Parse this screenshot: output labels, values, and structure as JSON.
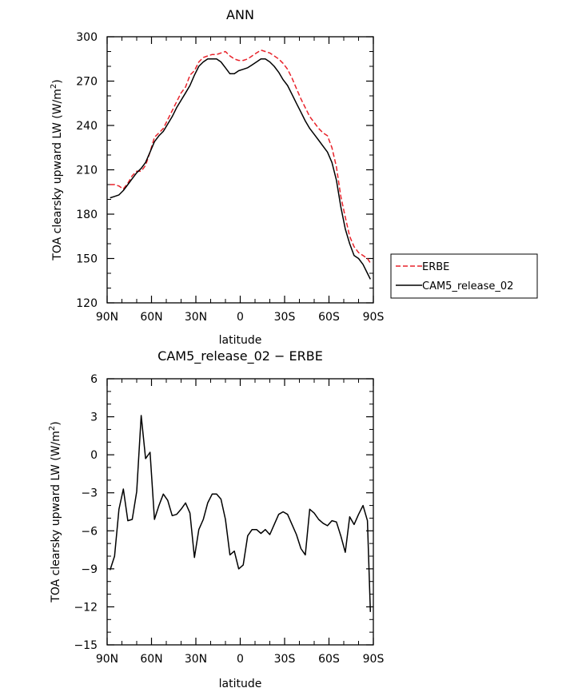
{
  "chart_data": [
    {
      "type": "line",
      "title": "ANN",
      "xlabel": "latitude",
      "ylabel": "TOA clearsky upward LW (W/m",
      "ylabel_sup": "2",
      "ylabel_close": ")",
      "xlim": [
        90,
        -90
      ],
      "ylim": [
        120,
        300
      ],
      "x_ticks": [
        90,
        60,
        30,
        0,
        -30,
        -60,
        -90
      ],
      "x_tick_labels": [
        "90N",
        "60N",
        "30N",
        "0",
        "30S",
        "60S",
        "90S"
      ],
      "y_ticks": [
        120,
        150,
        180,
        210,
        240,
        270,
        300
      ],
      "y_tick_labels": [
        "120",
        "150",
        "180",
        "210",
        "240",
        "270",
        "300"
      ],
      "legend": [
        "ERBE",
        "CAM5_release_02"
      ],
      "series": [
        {
          "name": "ERBE",
          "color": "#e8222a",
          "dash": true,
          "x": [
            88,
            85,
            82,
            79,
            76,
            73,
            70,
            67,
            64,
            61,
            58,
            55,
            52,
            49,
            46,
            43,
            40,
            37,
            34,
            31,
            28,
            25,
            22,
            19,
            16,
            13,
            10,
            7,
            4,
            1,
            -2,
            -5,
            -8,
            -11,
            -14,
            -17,
            -20,
            -23,
            -26,
            -29,
            -32,
            -35,
            -38,
            -41,
            -44,
            -47,
            -50,
            -53,
            -56,
            -59,
            -62,
            -65,
            -68,
            -71,
            -74,
            -77,
            -80,
            -83,
            -86,
            -88
          ],
          "values": [
            200,
            200,
            199,
            197,
            201,
            206,
            209,
            209,
            213,
            222,
            232,
            235,
            238,
            244,
            250,
            256,
            262,
            266,
            274,
            277,
            283,
            286,
            287,
            288,
            288,
            289,
            290,
            287,
            285,
            284,
            284,
            285,
            287,
            289,
            291,
            290,
            289,
            287,
            285,
            282,
            278,
            272,
            265,
            258,
            252,
            246,
            242,
            238,
            235,
            233,
            225,
            212,
            192,
            178,
            165,
            158,
            154,
            152,
            150,
            147
          ]
        },
        {
          "name": "CAM5_release_02",
          "color": "#000000",
          "dash": false,
          "x": [
            88,
            85,
            82,
            79,
            76,
            73,
            70,
            67,
            64,
            61,
            58,
            55,
            52,
            49,
            46,
            43,
            40,
            37,
            34,
            31,
            28,
            25,
            22,
            19,
            16,
            13,
            10,
            7,
            4,
            1,
            -2,
            -5,
            -8,
            -11,
            -14,
            -17,
            -20,
            -23,
            -26,
            -29,
            -32,
            -35,
            -38,
            -41,
            -44,
            -47,
            -50,
            -53,
            -56,
            -59,
            -62,
            -65,
            -68,
            -71,
            -74,
            -77,
            -80,
            -83,
            -86,
            -88
          ],
          "values": [
            191,
            192,
            193,
            196,
            200,
            204,
            208,
            211,
            215,
            222,
            229,
            233,
            236,
            241,
            246,
            252,
            257,
            262,
            267,
            274,
            280,
            283,
            285,
            285,
            285,
            283,
            279,
            275,
            275,
            277,
            278,
            279,
            281,
            283,
            285,
            285,
            283,
            280,
            276,
            271,
            267,
            261,
            255,
            249,
            243,
            238,
            234,
            230,
            226,
            222,
            215,
            203,
            185,
            170,
            160,
            152,
            150,
            146,
            140,
            136
          ]
        }
      ]
    },
    {
      "type": "line",
      "title": "CAM5_release_02 − ERBE",
      "xlabel": "latitude",
      "ylabel": "TOA clearsky upward LW (W/m",
      "ylabel_sup": "2",
      "ylabel_close": ")",
      "xlim": [
        90,
        -90
      ],
      "ylim": [
        -15,
        6
      ],
      "x_ticks": [
        90,
        60,
        30,
        0,
        -30,
        -60,
        -90
      ],
      "x_tick_labels": [
        "90N",
        "60N",
        "30N",
        "0",
        "30S",
        "60S",
        "90S"
      ],
      "y_ticks": [
        -15,
        -12,
        -9,
        -6,
        -3,
        0,
        3,
        6
      ],
      "y_tick_labels": [
        "−15",
        "−12",
        "−9",
        "−6",
        "−3",
        "0",
        "3",
        "6"
      ],
      "series": [
        {
          "name": "CAM5_release_02 - ERBE",
          "color": "#000000",
          "dash": false,
          "x": [
            88,
            85,
            82,
            79,
            76,
            73,
            70,
            67,
            64,
            61,
            58,
            55,
            52,
            49,
            46,
            43,
            40,
            37,
            34,
            31,
            28,
            25,
            22,
            19,
            16,
            13,
            10,
            7,
            4,
            1,
            -2,
            -5,
            -8,
            -11,
            -14,
            -17,
            -20,
            -23,
            -26,
            -29,
            -32,
            -35,
            -38,
            -41,
            -44,
            -47,
            -50,
            -53,
            -56,
            -59,
            -62,
            -65,
            -68,
            -71,
            -74,
            -77,
            -80,
            -83,
            -86,
            -88
          ],
          "values": [
            -9.1,
            -8.0,
            -4.3,
            -2.7,
            -5.2,
            -5.1,
            -2.9,
            3.1,
            -0.3,
            0.2,
            -5.1,
            -4.0,
            -3.1,
            -3.6,
            -4.8,
            -4.7,
            -4.3,
            -3.8,
            -4.6,
            -8.1,
            -5.9,
            -5.1,
            -3.8,
            -3.1,
            -3.1,
            -3.5,
            -5.1,
            -7.9,
            -7.6,
            -9.0,
            -8.7,
            -6.4,
            -5.9,
            -5.9,
            -6.2,
            -5.9,
            -6.3,
            -5.5,
            -4.7,
            -4.5,
            -4.7,
            -5.5,
            -6.3,
            -7.4,
            -7.9,
            -4.3,
            -4.6,
            -5.1,
            -5.4,
            -5.6,
            -5.2,
            -5.3,
            -6.4,
            -7.7,
            -4.9,
            -5.5,
            -4.7,
            -4.0,
            -5.2,
            -12.4
          ]
        }
      ]
    }
  ]
}
